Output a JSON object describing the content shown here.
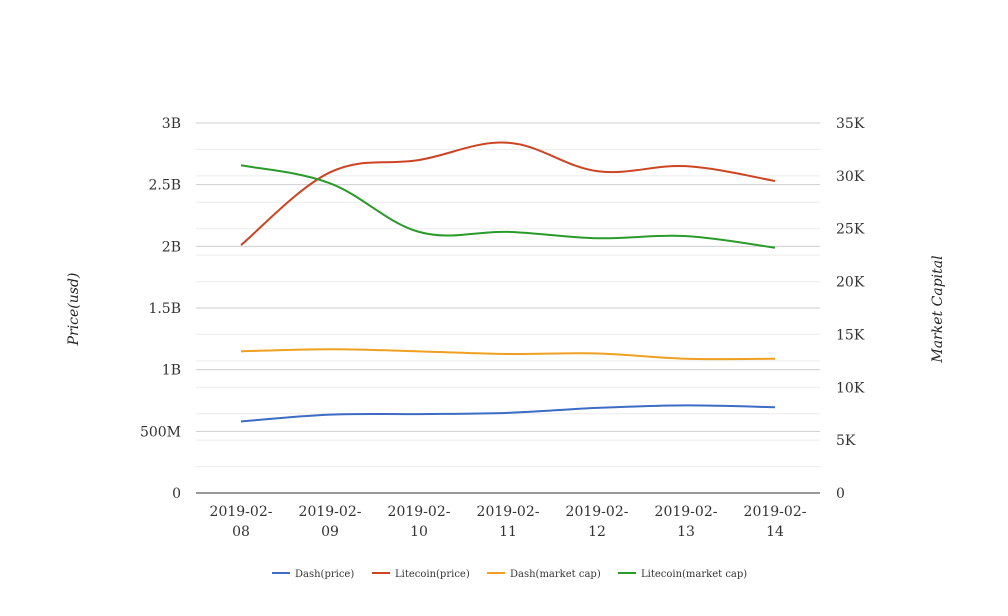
{
  "chart_data": {
    "type": "line",
    "categories": [
      "2019-02-08",
      "2019-02-09",
      "2019-02-10",
      "2019-02-11",
      "2019-02-12",
      "2019-02-13",
      "2019-02-14"
    ],
    "category_lines": [
      [
        "2019-02-",
        "08"
      ],
      [
        "2019-02-",
        "09"
      ],
      [
        "2019-02-",
        "10"
      ],
      [
        "2019-02-",
        "11"
      ],
      [
        "2019-02-",
        "12"
      ],
      [
        "2019-02-",
        "13"
      ],
      [
        "2019-02-",
        "14"
      ]
    ],
    "left_axis": {
      "label": "Price(usd)",
      "ylim": [
        0,
        3000000000
      ],
      "ticks": [
        0,
        500000000,
        1000000000,
        1500000000,
        2000000000,
        2500000000,
        3000000000
      ],
      "tick_labels": [
        "0",
        "500M",
        "1B",
        "1.5B",
        "2B",
        "2.5B",
        "3B"
      ]
    },
    "right_axis": {
      "label": "Market Capital",
      "ylim": [
        0,
        35000
      ],
      "ticks": [
        0,
        5000,
        10000,
        15000,
        20000,
        25000,
        30000,
        35000
      ],
      "tick_labels": [
        "0",
        "5K",
        "10K",
        "15K",
        "20K",
        "25K",
        "30K",
        "35K"
      ]
    },
    "grid": true,
    "legend_position": "bottom-center",
    "series": [
      {
        "name": "Dash(price)",
        "axis": "left",
        "color": "#3c6cc4",
        "values": [
          580000000,
          635000000,
          640000000,
          650000000,
          690000000,
          710000000,
          695000000
        ]
      },
      {
        "name": "Litecoin(price)",
        "axis": "left",
        "color": "#cc4422",
        "values": [
          2010000000,
          2600000000,
          2700000000,
          2840000000,
          2610000000,
          2650000000,
          2530000000
        ]
      },
      {
        "name": "Dash(market cap)",
        "axis": "right",
        "color": "#f0a020",
        "values": [
          13400,
          13600,
          13400,
          13150,
          13200,
          12700,
          12700
        ]
      },
      {
        "name": "Litecoin(market cap)",
        "axis": "right",
        "color": "#2a9a2a",
        "values": [
          31000,
          29300,
          24700,
          24700,
          24100,
          24300,
          23200
        ]
      }
    ]
  }
}
